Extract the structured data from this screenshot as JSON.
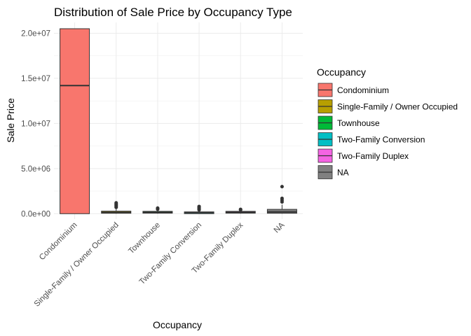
{
  "chart_data": {
    "type": "boxplot",
    "title": "Distribution of Sale Price by Occupancy Type",
    "xlabel": "Occupancy",
    "ylabel": "Sale Price",
    "ylim": [
      -600000,
      21200000
    ],
    "yticks": [
      0,
      5000000,
      10000000,
      15000000,
      20000000
    ],
    "ytick_labels": [
      "0.0e+00",
      "5.0e+06",
      "1.0e+07",
      "1.5e+07",
      "2.0e+07"
    ],
    "grid": true,
    "legend_position": "right",
    "legend_title": "Occupancy",
    "categories": [
      "Condominium",
      "Single-Family / Owner Occupied",
      "Townhouse",
      "Two-Family Conversion",
      "Two-Family Duplex",
      "NA"
    ],
    "colors": [
      "#F8766D",
      "#B79F00",
      "#00BA38",
      "#00BFC4",
      "#F564E3",
      "#808080"
    ],
    "boxes": [
      {
        "q1": 0,
        "median": 14200000,
        "q3": 20500000,
        "whisker_low": 0,
        "whisker_high": 20500000,
        "outliers": []
      },
      {
        "q1": 50000,
        "median": 150000,
        "q3": 280000,
        "whisker_low": 0,
        "whisker_high": 600000,
        "outliers": [
          700000,
          800000,
          900000,
          1000000,
          1100000,
          1200000
        ]
      },
      {
        "q1": 60000,
        "median": 150000,
        "q3": 260000,
        "whisker_low": 0,
        "whisker_high": 450000,
        "outliers": [
          500000,
          560000,
          620000
        ]
      },
      {
        "q1": 30000,
        "median": 120000,
        "q3": 200000,
        "whisker_low": 0,
        "whisker_high": 380000,
        "outliers": [
          420000,
          500000,
          580000,
          660000,
          740000,
          800000
        ]
      },
      {
        "q1": 60000,
        "median": 160000,
        "q3": 260000,
        "whisker_low": 0,
        "whisker_high": 380000,
        "outliers": [
          420000,
          480000
        ]
      },
      {
        "q1": 50000,
        "median": 200000,
        "q3": 480000,
        "whisker_low": 0,
        "whisker_high": 1000000,
        "outliers": [
          1300000,
          1500000,
          1700000,
          3000000
        ]
      }
    ]
  }
}
